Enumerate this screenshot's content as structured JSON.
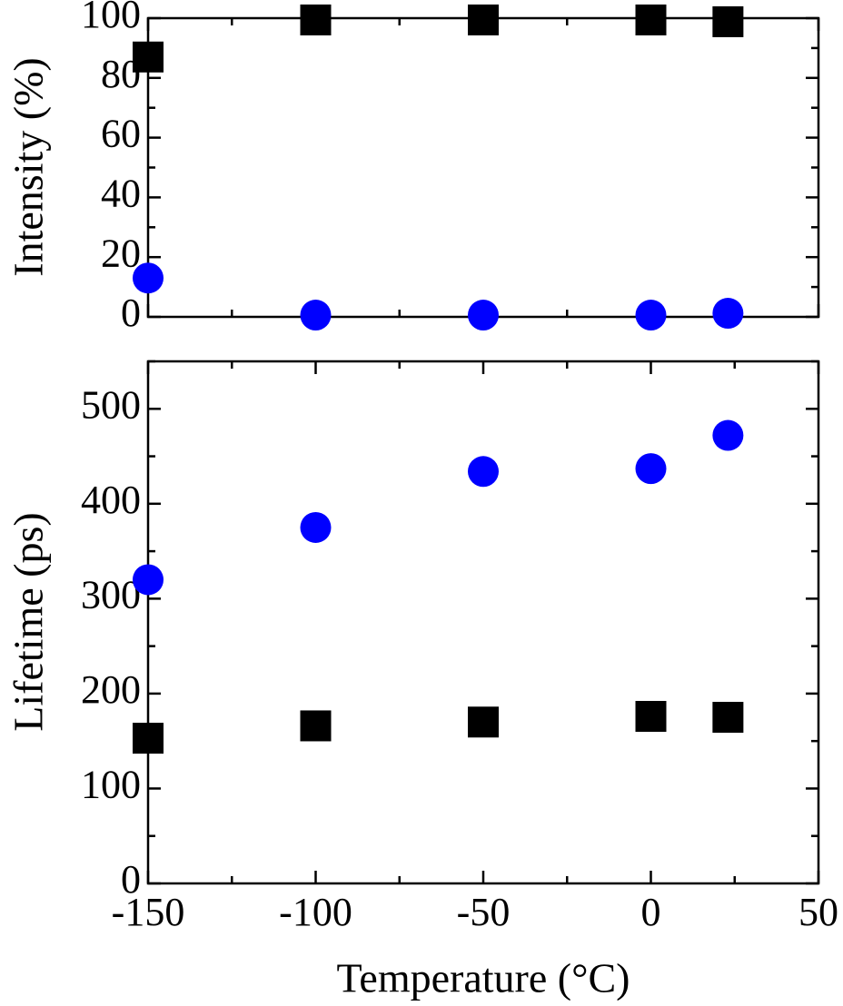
{
  "chart_data": [
    {
      "type": "scatter",
      "title": "",
      "xlabel": "",
      "ylabel": "Intensity (%)",
      "xlim": [
        -150,
        50
      ],
      "ylim": [
        0,
        100
      ],
      "x_ticks": [
        -150,
        -100,
        -50,
        0,
        50
      ],
      "y_ticks": [
        0,
        20,
        40,
        60,
        80,
        100
      ],
      "y_tick_labels": [
        "0",
        "20",
        "40",
        "60",
        "80",
        "100"
      ],
      "x_tick_labels_shown": false,
      "grid": false,
      "series": [
        {
          "marker": "square",
          "color": "#000000",
          "x": [
            -150,
            -100,
            -50,
            0,
            23
          ],
          "y": [
            87,
            99.4,
            99.4,
            99.4,
            98.8
          ]
        },
        {
          "marker": "circle",
          "color": "#0000ff",
          "x": [
            -150,
            -100,
            -50,
            0,
            23
          ],
          "y": [
            13,
            0.6,
            0.6,
            0.6,
            1.2
          ]
        }
      ]
    },
    {
      "type": "scatter",
      "title": "",
      "xlabel": "Temperature (°C)",
      "ylabel": "Lifetime (ps)",
      "xlim": [
        -150,
        50
      ],
      "ylim": [
        0,
        550
      ],
      "x_ticks": [
        -150,
        -100,
        -50,
        0,
        50
      ],
      "x_tick_labels": [
        "-150",
        "-100",
        "-50",
        "0",
        "50"
      ],
      "y_ticks": [
        0,
        100,
        200,
        300,
        400,
        500
      ],
      "y_tick_labels": [
        "0",
        "100",
        "200",
        "300",
        "400",
        "500"
      ],
      "x_tick_labels_shown": true,
      "grid": false,
      "series": [
        {
          "marker": "square",
          "color": "#000000",
          "x": [
            -150,
            -100,
            -50,
            0,
            23
          ],
          "y": [
            153,
            166,
            170,
            176,
            175
          ]
        },
        {
          "marker": "circle",
          "color": "#0000ff",
          "x": [
            -150,
            -100,
            -50,
            0,
            23
          ],
          "y": [
            320,
            375,
            434,
            437,
            472
          ]
        }
      ]
    }
  ]
}
